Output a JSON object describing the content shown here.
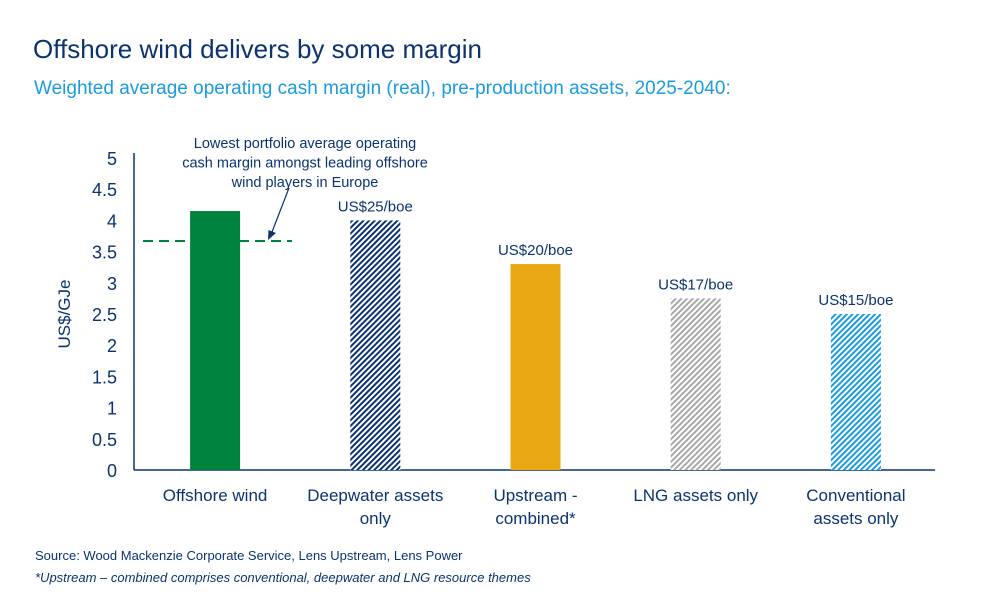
{
  "title": "Offshore wind delivers by some margin",
  "subtitle": "Weighted average operating cash margin (real), pre-production assets, 2025-2040:",
  "source": "Source: Wood Mackenzie Corporate Service, Lens Upstream, Lens Power",
  "footnote": "*Upstream – combined comprises conventional, deepwater and LNG resource themes",
  "chart_data": {
    "type": "bar",
    "ylabel": "US$/GJe",
    "ylim": [
      0,
      5
    ],
    "yticks": [
      "0",
      "0.5",
      "1",
      "1.5",
      "2",
      "2.5",
      "3",
      "3.5",
      "4",
      "4.5",
      "5"
    ],
    "grid": false,
    "categories": [
      [
        "Offshore wind"
      ],
      [
        "Deepwater assets",
        "only"
      ],
      [
        "Upstream -",
        "combined*"
      ],
      [
        "LNG assets only"
      ],
      [
        "Conventional",
        "assets only"
      ]
    ],
    "values": [
      4.15,
      4.0,
      3.3,
      2.75,
      2.5
    ],
    "data_labels": [
      "",
      "US$25/boe",
      "US$20/boe",
      "US$17/boe",
      "US$15/boe"
    ],
    "bar_styles": [
      {
        "fill": "solid",
        "color": "#00843d"
      },
      {
        "fill": "hatched",
        "color": "#0b3371"
      },
      {
        "fill": "solid",
        "color": "#e8a713"
      },
      {
        "fill": "hatched",
        "color": "#a8a8a8"
      },
      {
        "fill": "hatched",
        "color": "#1b9be0"
      }
    ],
    "reference_line": {
      "value": 3.67,
      "style": "dashed",
      "color": "#00843d"
    },
    "annotation": [
      "Lowest portfolio average operating",
      "cash margin amongst leading offshore",
      "wind players in Europe"
    ]
  }
}
